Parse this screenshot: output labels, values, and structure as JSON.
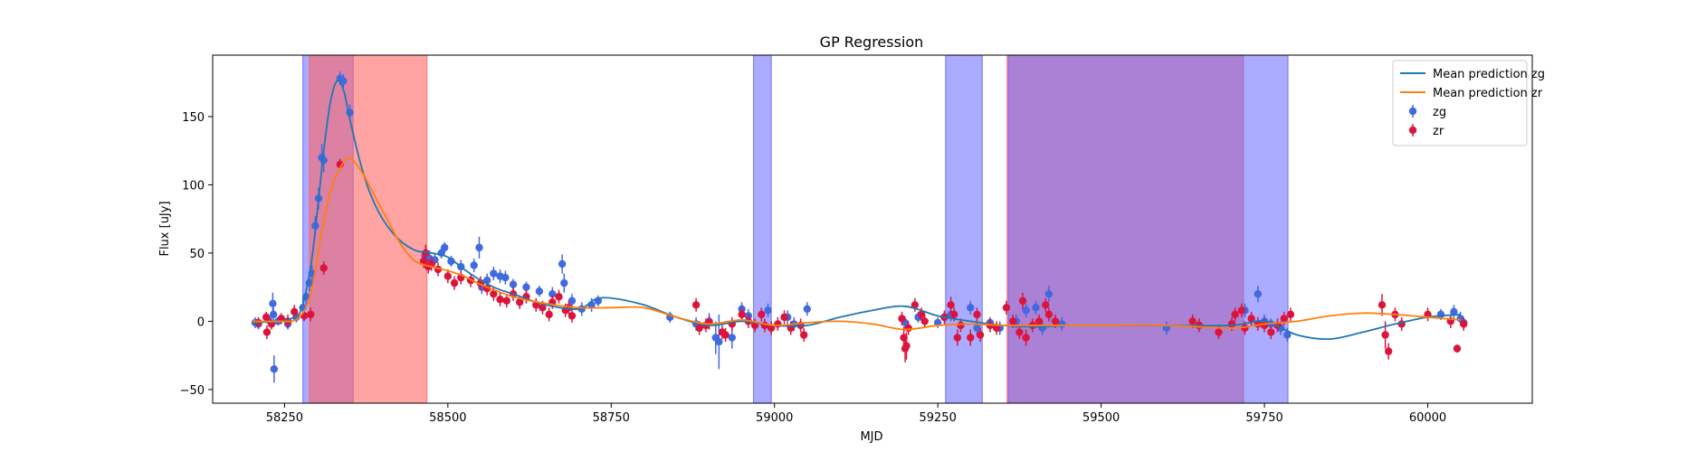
{
  "chart_data": {
    "type": "scatter",
    "title": "GP Regression",
    "xlabel": "MJD",
    "ylabel": "Flux [uJy]",
    "xlim": [
      58140,
      60160
    ],
    "ylim": [
      -60,
      195
    ],
    "xticks": [
      58250,
      58500,
      58750,
      59000,
      59250,
      59500,
      59750,
      60000
    ],
    "yticks": [
      -50,
      0,
      50,
      100,
      150
    ],
    "grid": false,
    "legend": {
      "position": "top-right",
      "entries": [
        {
          "label": "Mean prediction zg",
          "kind": "line",
          "color": "#1f77b4"
        },
        {
          "label": "Mean prediction zr",
          "kind": "line",
          "color": "#ff7f0e"
        },
        {
          "label": "zg",
          "kind": "marker",
          "color": "#4169e1"
        },
        {
          "label": "zr",
          "kind": "marker",
          "color": "#dc143c"
        }
      ]
    },
    "shaded_spans": [
      {
        "band": "zg",
        "color": "#6666ff",
        "opacity": 0.55,
        "x0": 58278,
        "x1": 58355
      },
      {
        "band": "zr",
        "color": "#ff6666",
        "opacity": 0.6,
        "x0": 58288,
        "x1": 58468
      },
      {
        "band": "zg",
        "color": "#6666ff",
        "opacity": 0.55,
        "x0": 58968,
        "x1": 58995
      },
      {
        "band": "zg",
        "color": "#6666ff",
        "opacity": 0.55,
        "x0": 59262,
        "x1": 59318
      },
      {
        "band": "zr",
        "color": "#ff6666",
        "opacity": 0.6,
        "x0": 59356,
        "x1": 59718
      },
      {
        "band": "zg",
        "color": "#6666ff",
        "opacity": 0.55,
        "x0": 59358,
        "x1": 59786
      }
    ],
    "series": [
      {
        "name": "Mean prediction zg",
        "kind": "line",
        "color": "#1f77b4",
        "x": [
          58200,
          58240,
          58260,
          58275,
          58290,
          58300,
          58310,
          58320,
          58330,
          58340,
          58350,
          58365,
          58380,
          58400,
          58425,
          58450,
          58475,
          58500,
          58525,
          58550,
          58575,
          58600,
          58650,
          58700,
          58725,
          58750,
          58800,
          58850,
          58900,
          58950,
          59000,
          59050,
          59100,
          59150,
          59200,
          59250,
          59300,
          59350,
          59400,
          59450,
          59500,
          59600,
          59700,
          59750,
          59800,
          59850,
          59900,
          59950,
          60000,
          60050
        ],
        "y": [
          -1,
          0,
          2,
          8,
          40,
          80,
          125,
          160,
          176,
          170,
          148,
          118,
          95,
          75,
          60,
          52,
          50,
          47,
          38,
          30,
          24,
          20,
          12,
          9,
          16,
          17,
          12,
          3,
          -3,
          0,
          -3,
          -3,
          3,
          8,
          11,
          4,
          0,
          -3,
          -4,
          -3,
          -3,
          -3,
          -3,
          0,
          -10,
          -13,
          -8,
          -2,
          3,
          5
        ]
      },
      {
        "name": "Mean prediction zr",
        "kind": "line",
        "color": "#ff7f0e",
        "x": [
          58200,
          58240,
          58270,
          58290,
          58305,
          58320,
          58335,
          58345,
          58355,
          58370,
          58390,
          58410,
          58430,
          58450,
          58475,
          58500,
          58525,
          58550,
          58600,
          58650,
          58700,
          58750,
          58800,
          58850,
          58900,
          58950,
          59000,
          59050,
          59100,
          59150,
          59200,
          59250,
          59300,
          59350,
          59400,
          59500,
          59600,
          59700,
          59750,
          59800,
          59850,
          59900,
          59950,
          60000,
          60050
        ],
        "y": [
          0,
          0,
          2,
          20,
          60,
          95,
          112,
          119,
          118,
          108,
          90,
          72,
          55,
          44,
          40,
          37,
          33,
          27,
          18,
          13,
          10,
          10,
          10,
          3,
          -2,
          1,
          -3,
          -1,
          0,
          -2,
          -6,
          -3,
          -2,
          -3,
          -3,
          -3,
          -3,
          -5,
          -2,
          0,
          4,
          6,
          5,
          3,
          1
        ]
      },
      {
        "name": "zg",
        "kind": "scatter",
        "color": "#4169e1",
        "points": [
          [
            58205,
            -1,
            4
          ],
          [
            58210,
            -2,
            4
          ],
          [
            58225,
            1,
            3
          ],
          [
            58232,
            13,
            8
          ],
          [
            58233,
            5,
            5
          ],
          [
            58234,
            -35,
            10
          ],
          [
            58240,
            0,
            3
          ],
          [
            58255,
            -2,
            4
          ],
          [
            58268,
            3,
            4
          ],
          [
            58278,
            10,
            8
          ],
          [
            58283,
            18,
            6
          ],
          [
            58288,
            28,
            6
          ],
          [
            58292,
            35,
            6
          ],
          [
            58297,
            70,
            7
          ],
          [
            58302,
            90,
            8
          ],
          [
            58307,
            120,
            10
          ],
          [
            58310,
            118,
            9
          ],
          [
            58335,
            178,
            5
          ],
          [
            58340,
            176,
            5
          ],
          [
            58350,
            153,
            6
          ],
          [
            58465,
            48,
            5
          ],
          [
            58472,
            46,
            6
          ],
          [
            58480,
            45,
            4
          ],
          [
            58490,
            50,
            4
          ],
          [
            58495,
            54,
            4
          ],
          [
            58505,
            44,
            4
          ],
          [
            58520,
            40,
            5
          ],
          [
            58540,
            41,
            5
          ],
          [
            58548,
            54,
            8
          ],
          [
            58552,
            25,
            5
          ],
          [
            58560,
            30,
            5
          ],
          [
            58570,
            35,
            5
          ],
          [
            58580,
            33,
            5
          ],
          [
            58588,
            32,
            5
          ],
          [
            58600,
            27,
            4
          ],
          [
            58620,
            25,
            4
          ],
          [
            58640,
            22,
            4
          ],
          [
            58660,
            20,
            5
          ],
          [
            58675,
            42,
            7
          ],
          [
            58678,
            28,
            7
          ],
          [
            58690,
            15,
            5
          ],
          [
            58705,
            9,
            5
          ],
          [
            58720,
            12,
            5
          ],
          [
            58730,
            15,
            4
          ],
          [
            58840,
            3,
            4
          ],
          [
            58880,
            -2,
            5
          ],
          [
            58900,
            0,
            6
          ],
          [
            58910,
            -12,
            12
          ],
          [
            58915,
            -15,
            20
          ],
          [
            58935,
            -12,
            8
          ],
          [
            58950,
            9,
            5
          ],
          [
            58960,
            4,
            5
          ],
          [
            58990,
            8,
            5
          ],
          [
            59020,
            3,
            5
          ],
          [
            59030,
            -2,
            5
          ],
          [
            59050,
            9,
            5
          ],
          [
            59200,
            -1,
            4
          ],
          [
            59220,
            3,
            4
          ],
          [
            59250,
            -1,
            4
          ],
          [
            59260,
            3,
            4
          ],
          [
            59270,
            5,
            5
          ],
          [
            59300,
            10,
            5
          ],
          [
            59310,
            -5,
            5
          ],
          [
            59330,
            -1,
            4
          ],
          [
            59345,
            -5,
            5
          ],
          [
            59370,
            0,
            5
          ],
          [
            59385,
            8,
            5
          ],
          [
            59400,
            10,
            5
          ],
          [
            59410,
            -5,
            5
          ],
          [
            59420,
            20,
            6
          ],
          [
            59440,
            -2,
            5
          ],
          [
            59600,
            -5,
            5
          ],
          [
            59650,
            -3,
            4
          ],
          [
            59700,
            -2,
            4
          ],
          [
            59720,
            8,
            5
          ],
          [
            59740,
            20,
            6
          ],
          [
            59750,
            0,
            5
          ],
          [
            59760,
            -2,
            4
          ],
          [
            59775,
            -5,
            5
          ],
          [
            59785,
            -10,
            5
          ],
          [
            60020,
            5,
            4
          ],
          [
            60040,
            7,
            5
          ],
          [
            60050,
            2,
            5
          ],
          [
            60055,
            -1,
            4
          ]
        ]
      },
      {
        "name": "zr",
        "kind": "scatter",
        "color": "#dc143c",
        "points": [
          [
            58210,
            -1,
            4
          ],
          [
            58222,
            3,
            4
          ],
          [
            58223,
            -8,
            5
          ],
          [
            58230,
            -2,
            4
          ],
          [
            58245,
            2,
            4
          ],
          [
            58255,
            0,
            5
          ],
          [
            58265,
            7,
            5
          ],
          [
            58280,
            4,
            4
          ],
          [
            58290,
            5,
            5
          ],
          [
            58310,
            39,
            5
          ],
          [
            58335,
            115,
            4
          ],
          [
            58463,
            44,
            5
          ],
          [
            58466,
            50,
            6
          ],
          [
            58470,
            40,
            5
          ],
          [
            58475,
            42,
            5
          ],
          [
            58485,
            38,
            5
          ],
          [
            58500,
            33,
            5
          ],
          [
            58510,
            28,
            5
          ],
          [
            58520,
            32,
            5
          ],
          [
            58535,
            30,
            5
          ],
          [
            58550,
            28,
            5
          ],
          [
            58560,
            24,
            5
          ],
          [
            58570,
            20,
            5
          ],
          [
            58580,
            16,
            5
          ],
          [
            58590,
            15,
            5
          ],
          [
            58600,
            20,
            5
          ],
          [
            58610,
            14,
            5
          ],
          [
            58620,
            18,
            5
          ],
          [
            58635,
            12,
            5
          ],
          [
            58645,
            10,
            5
          ],
          [
            58655,
            5,
            5
          ],
          [
            58660,
            14,
            5
          ],
          [
            58670,
            18,
            5
          ],
          [
            58680,
            8,
            5
          ],
          [
            58685,
            10,
            5
          ],
          [
            58690,
            4,
            5
          ],
          [
            58880,
            12,
            5
          ],
          [
            58885,
            -5,
            5
          ],
          [
            58895,
            -3,
            5
          ],
          [
            58900,
            -1,
            5
          ],
          [
            58920,
            -8,
            5
          ],
          [
            58925,
            -10,
            5
          ],
          [
            58935,
            -2,
            5
          ],
          [
            58950,
            5,
            5
          ],
          [
            58960,
            0,
            5
          ],
          [
            58970,
            -3,
            5
          ],
          [
            58980,
            5,
            5
          ],
          [
            58985,
            -3,
            5
          ],
          [
            58995,
            -5,
            5
          ],
          [
            59005,
            -2,
            5
          ],
          [
            59015,
            3,
            5
          ],
          [
            59025,
            -5,
            5
          ],
          [
            59040,
            -3,
            5
          ],
          [
            59045,
            -10,
            5
          ],
          [
            59195,
            2,
            5
          ],
          [
            59198,
            -12,
            8
          ],
          [
            59200,
            -20,
            10
          ],
          [
            59202,
            -18,
            10
          ],
          [
            59205,
            -5,
            5
          ],
          [
            59215,
            12,
            5
          ],
          [
            59225,
            5,
            5
          ],
          [
            59230,
            0,
            5
          ],
          [
            59260,
            3,
            5
          ],
          [
            59270,
            12,
            6
          ],
          [
            59275,
            5,
            5
          ],
          [
            59280,
            -12,
            6
          ],
          [
            59285,
            -3,
            5
          ],
          [
            59300,
            -12,
            6
          ],
          [
            59310,
            5,
            5
          ],
          [
            59315,
            -10,
            5
          ],
          [
            59330,
            -3,
            5
          ],
          [
            59340,
            -5,
            5
          ],
          [
            59355,
            10,
            5
          ],
          [
            59365,
            0,
            5
          ],
          [
            59375,
            -8,
            5
          ],
          [
            59380,
            15,
            6
          ],
          [
            59385,
            -12,
            6
          ],
          [
            59395,
            -3,
            5
          ],
          [
            59405,
            0,
            5
          ],
          [
            59415,
            12,
            5
          ],
          [
            59420,
            5,
            5
          ],
          [
            59430,
            0,
            5
          ],
          [
            59640,
            0,
            5
          ],
          [
            59650,
            -3,
            5
          ],
          [
            59680,
            -8,
            5
          ],
          [
            59700,
            -2,
            5
          ],
          [
            59705,
            5,
            5
          ],
          [
            59715,
            8,
            5
          ],
          [
            59720,
            -5,
            5
          ],
          [
            59730,
            2,
            5
          ],
          [
            59740,
            -2,
            5
          ],
          [
            59750,
            -3,
            5
          ],
          [
            59760,
            -8,
            5
          ],
          [
            59770,
            -3,
            5
          ],
          [
            59780,
            2,
            5
          ],
          [
            59790,
            5,
            5
          ],
          [
            59930,
            12,
            8
          ],
          [
            59935,
            -10,
            10
          ],
          [
            59940,
            -22,
            6
          ],
          [
            59950,
            5,
            5
          ],
          [
            59960,
            -2,
            5
          ],
          [
            60000,
            5,
            5
          ],
          [
            60035,
            0,
            5
          ],
          [
            60045,
            -20,
            3
          ],
          [
            60055,
            -2,
            5
          ]
        ]
      }
    ]
  }
}
